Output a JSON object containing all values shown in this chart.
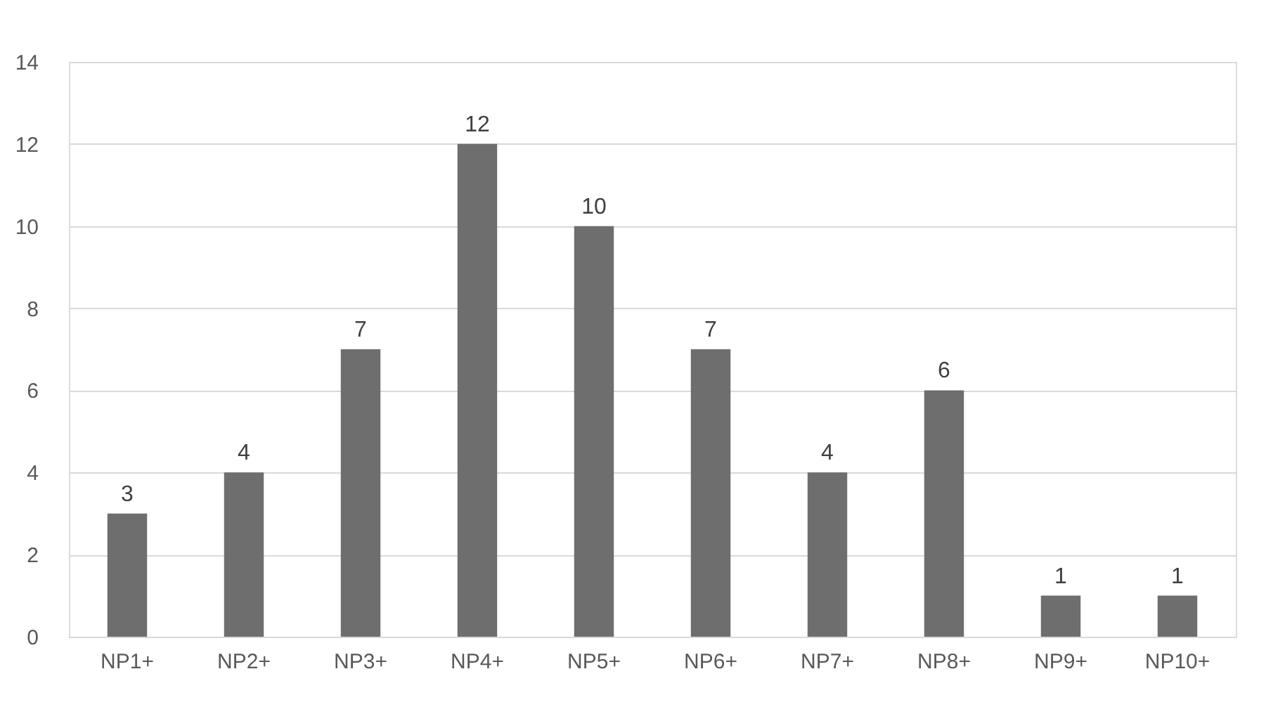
{
  "chart_data": {
    "type": "bar",
    "categories": [
      "NP1+",
      "NP2+",
      "NP3+",
      "NP4+",
      "NP5+",
      "NP6+",
      "NP7+",
      "NP8+",
      "NP9+",
      "NP10+"
    ],
    "values": [
      3,
      4,
      7,
      12,
      10,
      7,
      4,
      6,
      1,
      1
    ],
    "color": "#6e6e6e",
    "ylim": [
      0,
      14
    ],
    "yticks": [
      0,
      2,
      4,
      6,
      8,
      10,
      12,
      14
    ],
    "grid": "y",
    "data_labels": true
  }
}
